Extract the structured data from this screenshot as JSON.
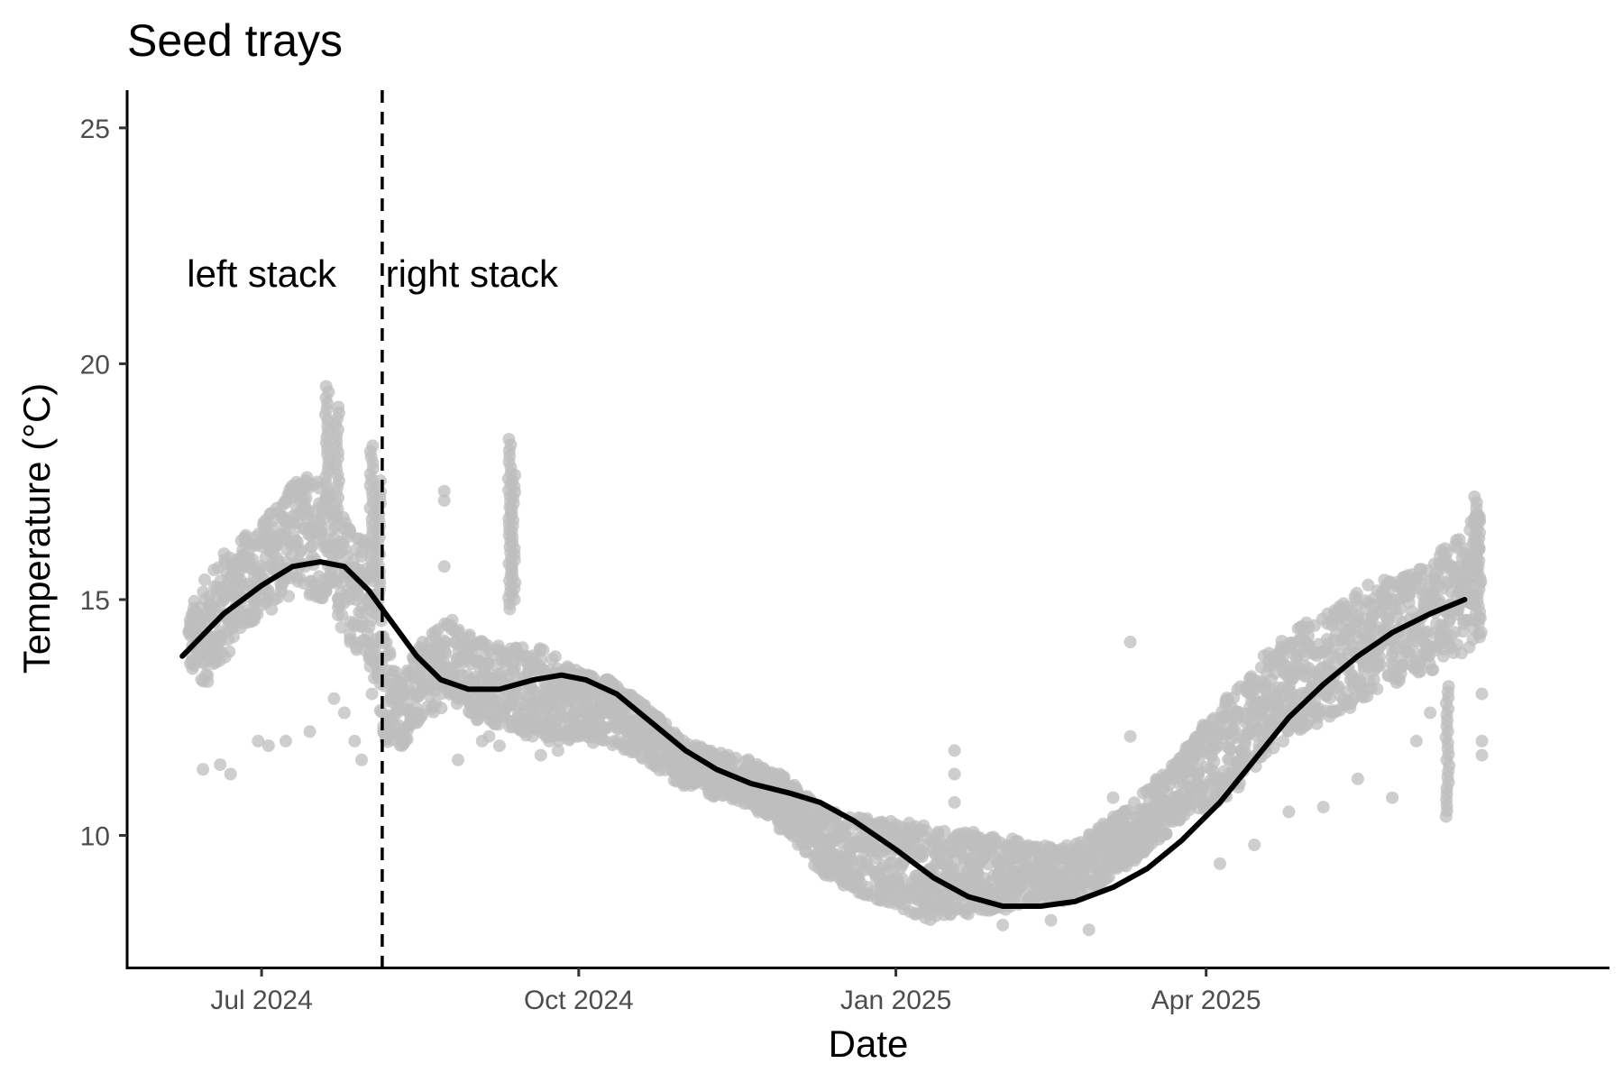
{
  "chart_data": {
    "type": "scatter",
    "title": "Seed trays",
    "xlabel": "Date",
    "ylabel": "Temperature (°C)",
    "x_type": "date",
    "xlim": [
      "2024-05-23",
      "2025-07-27"
    ],
    "ylim": [
      7.2,
      25.8
    ],
    "x_ticks": [
      {
        "date": "2024-07-01",
        "label": "Jul 2024"
      },
      {
        "date": "2024-10-01",
        "label": "Oct 2024"
      },
      {
        "date": "2025-01-01",
        "label": "Jan 2025"
      },
      {
        "date": "2025-04-01",
        "label": "Apr 2025"
      }
    ],
    "y_ticks": [
      10,
      15,
      20,
      25
    ],
    "grid": false,
    "legend": "none",
    "point_color": "#bdbdbd",
    "line_color": "#000000",
    "divider": {
      "date": "2024-08-05",
      "style": "dashed"
    },
    "annotations": [
      {
        "text": "left stack",
        "date": "2024-07-01",
        "y": 21.9
      },
      {
        "text": "right stack",
        "date": "2024-08-31",
        "y": 21.9
      }
    ],
    "band": [
      [
        "2024-06-10",
        13.4,
        14.8
      ],
      [
        "2024-06-15",
        13.2,
        15.5
      ],
      [
        "2024-06-20",
        13.6,
        16.0
      ],
      [
        "2024-06-25",
        14.4,
        16.3
      ],
      [
        "2024-07-01",
        14.6,
        16.6
      ],
      [
        "2024-07-06",
        14.9,
        17.2
      ],
      [
        "2024-07-12",
        15.2,
        17.6
      ],
      [
        "2024-07-18",
        15.0,
        17.8
      ],
      [
        "2024-07-22",
        15.0,
        17.0
      ],
      [
        "2024-07-26",
        14.0,
        16.6
      ],
      [
        "2024-08-01",
        13.8,
        16.4
      ],
      [
        "2024-08-05",
        12.0,
        14.4
      ],
      [
        "2024-08-10",
        11.8,
        13.4
      ],
      [
        "2024-08-18",
        12.5,
        14.2
      ],
      [
        "2024-08-25",
        12.8,
        14.6
      ],
      [
        "2024-09-01",
        12.4,
        14.2
      ],
      [
        "2024-09-10",
        12.3,
        14.0
      ],
      [
        "2024-09-20",
        12.0,
        14.0
      ],
      [
        "2024-10-01",
        12.0,
        13.5
      ],
      [
        "2024-10-10",
        11.9,
        13.3
      ],
      [
        "2024-10-20",
        11.6,
        12.8
      ],
      [
        "2024-11-01",
        11.0,
        12.0
      ],
      [
        "2024-11-10",
        10.8,
        11.8
      ],
      [
        "2024-11-20",
        10.6,
        11.6
      ],
      [
        "2024-12-01",
        10.0,
        11.2
      ],
      [
        "2024-12-10",
        9.2,
        10.6
      ],
      [
        "2024-12-20",
        8.8,
        10.4
      ],
      [
        "2025-01-01",
        8.5,
        10.3
      ],
      [
        "2025-01-10",
        8.2,
        10.2
      ],
      [
        "2025-01-20",
        8.3,
        10.1
      ],
      [
        "2025-02-01",
        8.4,
        10.0
      ],
      [
        "2025-02-10",
        8.6,
        9.8
      ],
      [
        "2025-02-20",
        8.6,
        9.8
      ],
      [
        "2025-03-01",
        8.9,
        10.2
      ],
      [
        "2025-03-10",
        9.4,
        10.6
      ],
      [
        "2025-03-20",
        10.0,
        11.4
      ],
      [
        "2025-04-01",
        10.5,
        12.4
      ],
      [
        "2025-04-10",
        11.0,
        13.2
      ],
      [
        "2025-04-20",
        11.8,
        14.0
      ],
      [
        "2025-05-01",
        12.3,
        14.6
      ],
      [
        "2025-05-10",
        12.6,
        15.0
      ],
      [
        "2025-05-20",
        13.0,
        15.4
      ],
      [
        "2025-06-01",
        13.4,
        15.6
      ],
      [
        "2025-06-10",
        13.6,
        16.2
      ],
      [
        "2025-06-20",
        14.2,
        16.9
      ]
    ],
    "spikes": [
      [
        "2024-07-20",
        17.0,
        19.6
      ],
      [
        "2024-07-23",
        16.8,
        19.2
      ],
      [
        "2024-08-02",
        15.5,
        18.3
      ],
      [
        "2024-08-04",
        15.0,
        17.6
      ],
      [
        "2024-09-11",
        14.8,
        18.5
      ],
      [
        "2024-09-12",
        15.0,
        17.7
      ],
      [
        "2025-06-18",
        15.5,
        17.3
      ],
      [
        "2025-06-19",
        14.5,
        16.8
      ],
      [
        "2025-06-10",
        10.4,
        13.2
      ]
    ],
    "outliers": [
      [
        "2024-06-14",
        11.4
      ],
      [
        "2024-06-19",
        11.5
      ],
      [
        "2024-06-22",
        11.3
      ],
      [
        "2024-06-30",
        12.0
      ],
      [
        "2024-07-03",
        11.9
      ],
      [
        "2024-07-08",
        12.0
      ],
      [
        "2024-07-15",
        12.2
      ],
      [
        "2024-07-22",
        12.9
      ],
      [
        "2024-07-25",
        12.6
      ],
      [
        "2024-07-28",
        12.0
      ],
      [
        "2024-07-30",
        11.6
      ],
      [
        "2024-08-02",
        13.0
      ],
      [
        "2024-08-23",
        17.3
      ],
      [
        "2024-08-23",
        17.1
      ],
      [
        "2024-08-23",
        15.7
      ],
      [
        "2024-08-27",
        11.6
      ],
      [
        "2024-09-03",
        12.0
      ],
      [
        "2024-09-05",
        12.1
      ],
      [
        "2024-09-08",
        11.9
      ],
      [
        "2024-09-15",
        12.4
      ],
      [
        "2024-09-20",
        11.7
      ],
      [
        "2024-09-25",
        11.8
      ],
      [
        "2025-01-18",
        11.8
      ],
      [
        "2025-01-18",
        11.3
      ],
      [
        "2025-01-18",
        10.7
      ],
      [
        "2025-02-01",
        8.1
      ],
      [
        "2025-02-15",
        8.2
      ],
      [
        "2025-02-26",
        8.0
      ],
      [
        "2025-03-10",
        14.1
      ],
      [
        "2025-03-10",
        12.1
      ],
      [
        "2025-03-05",
        10.8
      ],
      [
        "2025-04-05",
        9.4
      ],
      [
        "2025-04-15",
        9.8
      ],
      [
        "2025-04-25",
        10.5
      ],
      [
        "2025-05-05",
        10.6
      ],
      [
        "2025-05-15",
        11.2
      ],
      [
        "2025-05-25",
        10.8
      ],
      [
        "2025-06-01",
        12.0
      ],
      [
        "2025-06-05",
        12.6
      ],
      [
        "2025-06-20",
        11.7
      ],
      [
        "2025-06-20",
        12.0
      ],
      [
        "2025-06-20",
        13.0
      ]
    ],
    "smooth_line": [
      [
        "2024-06-08",
        13.8
      ],
      [
        "2024-06-20",
        14.7
      ],
      [
        "2024-07-01",
        15.3
      ],
      [
        "2024-07-10",
        15.7
      ],
      [
        "2024-07-18",
        15.8
      ],
      [
        "2024-07-25",
        15.7
      ],
      [
        "2024-08-01",
        15.2
      ],
      [
        "2024-08-08",
        14.5
      ],
      [
        "2024-08-15",
        13.8
      ],
      [
        "2024-08-22",
        13.3
      ],
      [
        "2024-08-30",
        13.1
      ],
      [
        "2024-09-08",
        13.1
      ],
      [
        "2024-09-18",
        13.3
      ],
      [
        "2024-09-26",
        13.4
      ],
      [
        "2024-10-03",
        13.3
      ],
      [
        "2024-10-12",
        13.0
      ],
      [
        "2024-10-22",
        12.4
      ],
      [
        "2024-11-01",
        11.8
      ],
      [
        "2024-11-10",
        11.4
      ],
      [
        "2024-11-20",
        11.1
      ],
      [
        "2024-12-01",
        10.9
      ],
      [
        "2024-12-10",
        10.7
      ],
      [
        "2024-12-20",
        10.3
      ],
      [
        "2025-01-01",
        9.7
      ],
      [
        "2025-01-12",
        9.1
      ],
      [
        "2025-01-22",
        8.7
      ],
      [
        "2025-02-01",
        8.5
      ],
      [
        "2025-02-12",
        8.5
      ],
      [
        "2025-02-22",
        8.6
      ],
      [
        "2025-03-05",
        8.9
      ],
      [
        "2025-03-15",
        9.3
      ],
      [
        "2025-03-25",
        9.9
      ],
      [
        "2025-04-05",
        10.7
      ],
      [
        "2025-04-15",
        11.6
      ],
      [
        "2025-04-25",
        12.5
      ],
      [
        "2025-05-05",
        13.2
      ],
      [
        "2025-05-15",
        13.8
      ],
      [
        "2025-05-25",
        14.3
      ],
      [
        "2025-06-05",
        14.7
      ],
      [
        "2025-06-15",
        15.0
      ]
    ]
  }
}
